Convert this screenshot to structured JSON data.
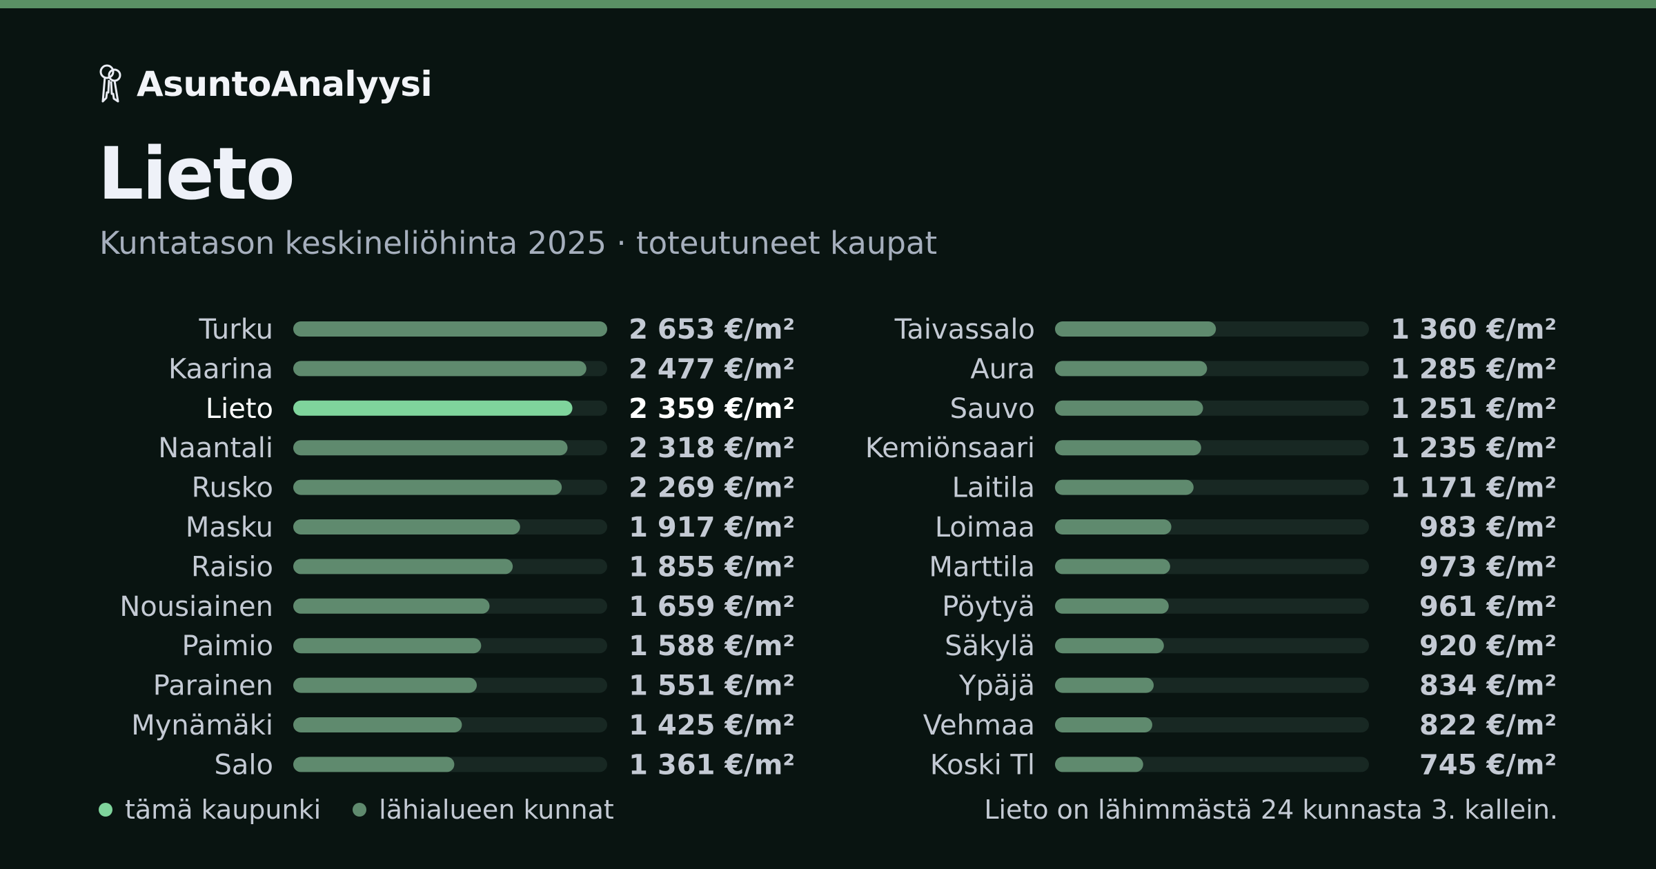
{
  "brand": {
    "name": "AsuntoAnalyysi",
    "icon": "keys-icon"
  },
  "title": "Lieto",
  "subtitle": "Kuntatason keskineliöhinta 2025 · toteutuneet kaupat",
  "colors": {
    "highlight": "#7fd49c",
    "bar": "#5f8a6e",
    "track": "#182823",
    "label": "#c4cad4",
    "highlight_text": "#ffffff",
    "accent": "#5a9065"
  },
  "chart_data": {
    "type": "bar",
    "orientation": "horizontal",
    "unit": "€/m²",
    "highlight": "Lieto",
    "categories": [
      "Turku",
      "Kaarina",
      "Lieto",
      "Naantali",
      "Rusko",
      "Masku",
      "Raisio",
      "Nousiainen",
      "Paimio",
      "Parainen",
      "Mynämäki",
      "Salo",
      "Taivassalo",
      "Aura",
      "Sauvo",
      "Kemiönsaari",
      "Laitila",
      "Loimaa",
      "Marttila",
      "Pöytyä",
      "Säkylä",
      "Ypäjä",
      "Vehmaa",
      "Koski Tl"
    ],
    "values": [
      2653,
      2477,
      2359,
      2318,
      2269,
      1917,
      1855,
      1659,
      1588,
      1551,
      1425,
      1361,
      1360,
      1285,
      1251,
      1235,
      1171,
      983,
      973,
      961,
      920,
      834,
      822,
      745
    ],
    "value_labels": [
      "2 653 €/m²",
      "2 477 €/m²",
      "2 359 €/m²",
      "2 318 €/m²",
      "2 269 €/m²",
      "1 917 €/m²",
      "1 855 €/m²",
      "1 659 €/m²",
      "1 588 €/m²",
      "1 551 €/m²",
      "1 425 €/m²",
      "1 361 €/m²",
      "1 360 €/m²",
      "1 285 €/m²",
      "1 251 €/m²",
      "1 235 €/m²",
      "1 171 €/m²",
      "983 €/m²",
      "973 €/m²",
      "961 €/m²",
      "920 €/m²",
      "834 €/m²",
      "822 €/m²",
      "745 €/m²"
    ],
    "xlim": [
      0,
      2653
    ],
    "grid": false,
    "legend": "bottom-left"
  },
  "legend": {
    "this_city": "tämä kaupunki",
    "nearby": "lähialueen kunnat"
  },
  "footnote": "Lieto on lähimmästä 24 kunnasta 3. kallein."
}
